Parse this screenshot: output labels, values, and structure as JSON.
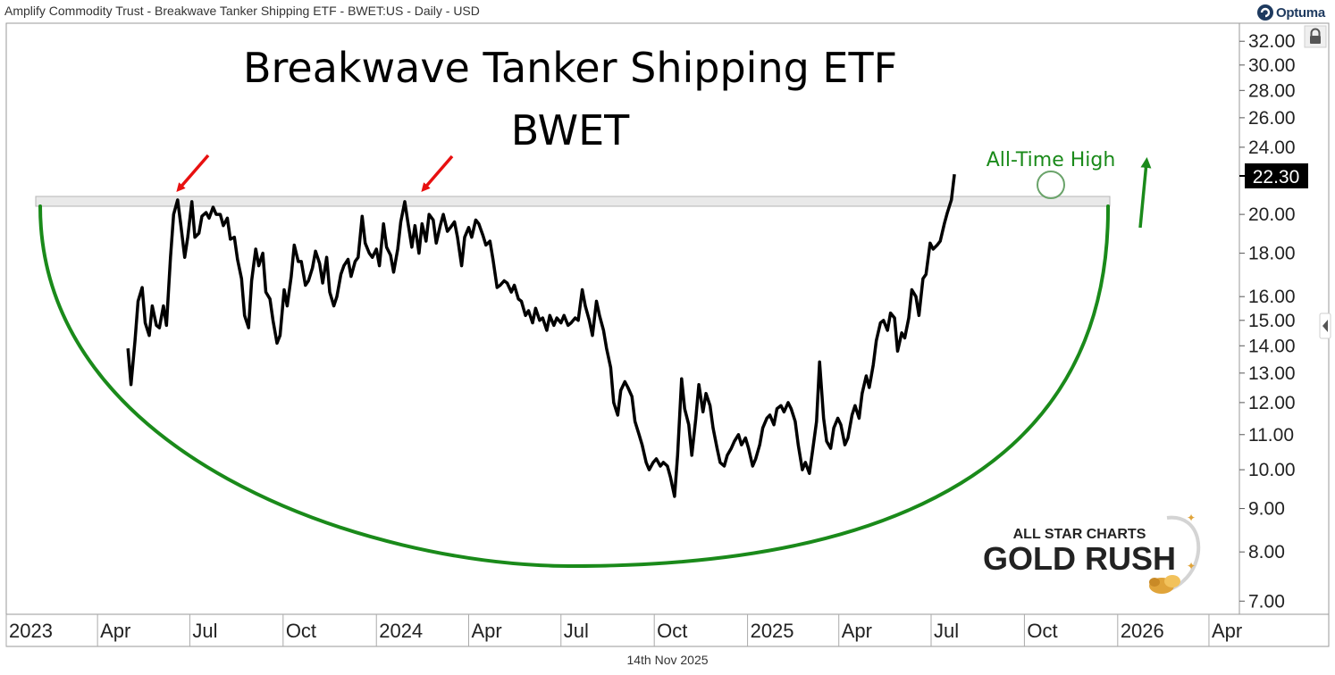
{
  "header": {
    "description": "Amplify Commodity Trust - Breakwave Tanker Shipping ETF - BWET:US - Daily - USD",
    "brand": "Optuma"
  },
  "footer": {
    "date": "14th Nov 2025"
  },
  "watermark": {
    "line1": "ALL STAR CHARTS",
    "line2": "GOLD RUSH"
  },
  "colors": {
    "price_line": "#000000",
    "arc": "#1a8a1a",
    "annotation": "#1a8a1a",
    "arrows": "#e81010",
    "band": "#e9e9e9"
  },
  "chart_data": {
    "type": "line",
    "title": "Breakwave Tanker Shipping ETF",
    "subtitle": "BWET",
    "x_tick_labels": [
      "2023",
      "Apr",
      "Jul",
      "Oct",
      "2024",
      "Apr",
      "Jul",
      "Oct",
      "2025",
      "Apr",
      "Jul",
      "Oct",
      "2026",
      "Apr"
    ],
    "x_ticks": [
      "2023-01-01",
      "2023-04-01",
      "2023-07-01",
      "2023-10-01",
      "2024-01-01",
      "2024-04-01",
      "2024-07-01",
      "2024-10-01",
      "2025-01-01",
      "2025-04-01",
      "2025-07-01",
      "2025-10-01",
      "2026-01-01",
      "2026-04-01"
    ],
    "xlim": [
      "2023-01-01",
      "2026-05-01"
    ],
    "y_scale": "log",
    "y_ticks": [
      7,
      8,
      9,
      10,
      11,
      12,
      13,
      14,
      15,
      16,
      18,
      20,
      24,
      26,
      28,
      30,
      32
    ],
    "y_tick_labels": [
      "7.00",
      "8.00",
      "9.00",
      "10.00",
      "11.00",
      "12.00",
      "13.00",
      "14.00",
      "15.00",
      "16.00",
      "18.00",
      "20.00",
      "24.00",
      "26.00",
      "28.00",
      "30.00",
      "32.00"
    ],
    "ylim": [
      6.6,
      35
    ],
    "last_value": 22.3,
    "last_value_label": "22.30",
    "resistance_band": [
      20.6,
      21.1
    ],
    "annotations": [
      {
        "text": "All-Time High",
        "date": "2025-11-12",
        "value": 22.3
      }
    ],
    "series": [
      {
        "points": [
          [
            "2023-05-01",
            13.9
          ],
          [
            "2023-05-04",
            12.6
          ],
          [
            "2023-05-08",
            14.2
          ],
          [
            "2023-05-11",
            15.8
          ],
          [
            "2023-05-15",
            16.4
          ],
          [
            "2023-05-18",
            14.9
          ],
          [
            "2023-05-22",
            14.4
          ],
          [
            "2023-05-25",
            15.6
          ],
          [
            "2023-05-29",
            14.8
          ],
          [
            "2023-06-01",
            14.7
          ],
          [
            "2023-06-05",
            15.6
          ],
          [
            "2023-06-08",
            14.8
          ],
          [
            "2023-06-12",
            17.8
          ],
          [
            "2023-06-15",
            20.0
          ],
          [
            "2023-06-19",
            20.8
          ],
          [
            "2023-06-22",
            19.5
          ],
          [
            "2023-06-26",
            17.8
          ],
          [
            "2023-06-29",
            18.8
          ],
          [
            "2023-07-03",
            20.7
          ],
          [
            "2023-07-06",
            18.8
          ],
          [
            "2023-07-10",
            19.0
          ],
          [
            "2023-07-13",
            19.9
          ],
          [
            "2023-07-17",
            20.1
          ],
          [
            "2023-07-20",
            19.8
          ],
          [
            "2023-07-24",
            20.4
          ],
          [
            "2023-07-27",
            20.0
          ],
          [
            "2023-07-31",
            20.0
          ],
          [
            "2023-08-03",
            19.4
          ],
          [
            "2023-08-07",
            19.8
          ],
          [
            "2023-08-10",
            18.7
          ],
          [
            "2023-08-14",
            18.8
          ],
          [
            "2023-08-17",
            17.7
          ],
          [
            "2023-08-21",
            16.8
          ],
          [
            "2023-08-24",
            15.2
          ],
          [
            "2023-08-28",
            14.7
          ],
          [
            "2023-08-31",
            16.7
          ],
          [
            "2023-09-04",
            18.2
          ],
          [
            "2023-09-07",
            17.4
          ],
          [
            "2023-09-11",
            18.0
          ],
          [
            "2023-09-14",
            16.2
          ],
          [
            "2023-09-18",
            15.9
          ],
          [
            "2023-09-21",
            15.0
          ],
          [
            "2023-09-25",
            14.1
          ],
          [
            "2023-09-28",
            14.4
          ],
          [
            "2023-10-02",
            16.3
          ],
          [
            "2023-10-05",
            15.6
          ],
          [
            "2023-10-09",
            16.9
          ],
          [
            "2023-10-12",
            18.4
          ],
          [
            "2023-10-16",
            17.6
          ],
          [
            "2023-10-19",
            17.6
          ],
          [
            "2023-10-23",
            16.5
          ],
          [
            "2023-10-26",
            16.7
          ],
          [
            "2023-10-30",
            17.3
          ],
          [
            "2023-11-02",
            18.1
          ],
          [
            "2023-11-06",
            17.5
          ],
          [
            "2023-11-09",
            16.6
          ],
          [
            "2023-11-13",
            17.8
          ],
          [
            "2023-11-16",
            16.2
          ],
          [
            "2023-11-20",
            15.6
          ],
          [
            "2023-11-23",
            16.0
          ],
          [
            "2023-11-27",
            17.0
          ],
          [
            "2023-11-30",
            17.4
          ],
          [
            "2023-12-04",
            17.7
          ],
          [
            "2023-12-07",
            16.9
          ],
          [
            "2023-12-11",
            17.6
          ],
          [
            "2023-12-14",
            17.8
          ],
          [
            "2023-12-18",
            19.9
          ],
          [
            "2023-12-21",
            18.5
          ],
          [
            "2023-12-25",
            18.0
          ],
          [
            "2023-12-28",
            17.8
          ],
          [
            "2024-01-01",
            18.2
          ],
          [
            "2024-01-04",
            17.4
          ],
          [
            "2024-01-08",
            19.5
          ],
          [
            "2024-01-11",
            18.3
          ],
          [
            "2024-01-15",
            17.9
          ],
          [
            "2024-01-18",
            17.1
          ],
          [
            "2024-01-22",
            18.2
          ],
          [
            "2024-01-25",
            19.6
          ],
          [
            "2024-01-29",
            20.7
          ],
          [
            "2024-02-01",
            19.6
          ],
          [
            "2024-02-05",
            18.3
          ],
          [
            "2024-02-08",
            19.4
          ],
          [
            "2024-02-12",
            18.0
          ],
          [
            "2024-02-15",
            19.5
          ],
          [
            "2024-02-19",
            18.6
          ],
          [
            "2024-02-22",
            20.0
          ],
          [
            "2024-02-26",
            19.7
          ],
          [
            "2024-02-29",
            18.5
          ],
          [
            "2024-03-04",
            19.4
          ],
          [
            "2024-03-07",
            20.0
          ],
          [
            "2024-03-11",
            19.1
          ],
          [
            "2024-03-14",
            19.3
          ],
          [
            "2024-03-18",
            19.6
          ],
          [
            "2024-03-21",
            18.8
          ],
          [
            "2024-03-25",
            17.4
          ],
          [
            "2024-03-28",
            18.8
          ],
          [
            "2024-04-01",
            19.3
          ],
          [
            "2024-04-04",
            18.8
          ],
          [
            "2024-04-08",
            19.7
          ],
          [
            "2024-04-11",
            19.5
          ],
          [
            "2024-04-15",
            18.9
          ],
          [
            "2024-04-18",
            18.4
          ],
          [
            "2024-04-22",
            18.6
          ],
          [
            "2024-04-25",
            17.7
          ],
          [
            "2024-04-29",
            16.4
          ],
          [
            "2024-05-02",
            16.5
          ],
          [
            "2024-05-06",
            16.7
          ],
          [
            "2024-05-09",
            16.6
          ],
          [
            "2024-05-13",
            16.2
          ],
          [
            "2024-05-16",
            16.5
          ],
          [
            "2024-05-20",
            15.9
          ],
          [
            "2024-05-23",
            15.8
          ],
          [
            "2024-05-27",
            15.2
          ],
          [
            "2024-05-30",
            15.4
          ],
          [
            "2024-06-03",
            14.9
          ],
          [
            "2024-06-06",
            15.5
          ],
          [
            "2024-06-10",
            15.0
          ],
          [
            "2024-06-13",
            15.1
          ],
          [
            "2024-06-17",
            14.6
          ],
          [
            "2024-06-20",
            15.2
          ],
          [
            "2024-06-24",
            14.8
          ],
          [
            "2024-06-27",
            15.1
          ],
          [
            "2024-07-01",
            14.9
          ],
          [
            "2024-07-04",
            15.2
          ],
          [
            "2024-07-08",
            14.8
          ],
          [
            "2024-07-11",
            14.9
          ],
          [
            "2024-07-15",
            15.1
          ],
          [
            "2024-07-18",
            15.0
          ],
          [
            "2024-07-22",
            16.3
          ],
          [
            "2024-07-25",
            15.6
          ],
          [
            "2024-07-29",
            15.0
          ],
          [
            "2024-08-01",
            14.4
          ],
          [
            "2024-08-05",
            15.8
          ],
          [
            "2024-08-08",
            15.2
          ],
          [
            "2024-08-12",
            14.6
          ],
          [
            "2024-08-15",
            13.9
          ],
          [
            "2024-08-19",
            13.2
          ],
          [
            "2024-08-22",
            12.0
          ],
          [
            "2024-08-26",
            11.6
          ],
          [
            "2024-08-29",
            12.4
          ],
          [
            "2024-09-02",
            12.7
          ],
          [
            "2024-09-05",
            12.5
          ],
          [
            "2024-09-09",
            12.2
          ],
          [
            "2024-09-12",
            11.4
          ],
          [
            "2024-09-16",
            11.0
          ],
          [
            "2024-09-19",
            10.7
          ],
          [
            "2024-09-23",
            10.2
          ],
          [
            "2024-09-26",
            10.0
          ],
          [
            "2024-09-30",
            10.2
          ],
          [
            "2024-10-03",
            10.3
          ],
          [
            "2024-10-07",
            10.1
          ],
          [
            "2024-10-10",
            10.2
          ],
          [
            "2024-10-14",
            10.1
          ],
          [
            "2024-10-17",
            9.8
          ],
          [
            "2024-10-21",
            9.3
          ],
          [
            "2024-10-24",
            10.4
          ],
          [
            "2024-10-28",
            12.8
          ],
          [
            "2024-10-31",
            11.8
          ],
          [
            "2024-11-04",
            11.3
          ],
          [
            "2024-11-07",
            10.4
          ],
          [
            "2024-11-11",
            11.5
          ],
          [
            "2024-11-14",
            12.6
          ],
          [
            "2024-11-18",
            11.7
          ],
          [
            "2024-11-21",
            12.3
          ],
          [
            "2024-11-25",
            11.9
          ],
          [
            "2024-11-28",
            11.2
          ],
          [
            "2024-12-02",
            10.6
          ],
          [
            "2024-12-05",
            10.2
          ],
          [
            "2024-12-09",
            10.1
          ],
          [
            "2024-12-12",
            10.4
          ],
          [
            "2024-12-16",
            10.6
          ],
          [
            "2024-12-19",
            10.8
          ],
          [
            "2024-12-23",
            11.0
          ],
          [
            "2024-12-26",
            10.7
          ],
          [
            "2024-12-30",
            10.9
          ],
          [
            "2025-01-02",
            10.6
          ],
          [
            "2025-01-06",
            10.1
          ],
          [
            "2025-01-09",
            10.3
          ],
          [
            "2025-01-13",
            10.7
          ],
          [
            "2025-01-16",
            11.2
          ],
          [
            "2025-01-20",
            11.5
          ],
          [
            "2025-01-23",
            11.6
          ],
          [
            "2025-01-27",
            11.3
          ],
          [
            "2025-01-30",
            11.8
          ],
          [
            "2025-02-03",
            11.9
          ],
          [
            "2025-02-06",
            11.7
          ],
          [
            "2025-02-10",
            12.0
          ],
          [
            "2025-02-13",
            11.8
          ],
          [
            "2025-02-17",
            11.4
          ],
          [
            "2025-02-20",
            10.7
          ],
          [
            "2025-02-24",
            10.0
          ],
          [
            "2025-02-27",
            10.2
          ],
          [
            "2025-03-03",
            9.9
          ],
          [
            "2025-03-06",
            10.5
          ],
          [
            "2025-03-10",
            11.4
          ],
          [
            "2025-03-13",
            13.4
          ],
          [
            "2025-03-17",
            11.5
          ],
          [
            "2025-03-20",
            10.8
          ],
          [
            "2025-03-24",
            10.6
          ],
          [
            "2025-03-27",
            11.2
          ],
          [
            "2025-03-31",
            11.5
          ],
          [
            "2025-04-03",
            11.3
          ],
          [
            "2025-04-07",
            10.7
          ],
          [
            "2025-04-10",
            10.9
          ],
          [
            "2025-04-14",
            11.6
          ],
          [
            "2025-04-17",
            11.9
          ],
          [
            "2025-04-21",
            11.5
          ],
          [
            "2025-04-24",
            12.3
          ],
          [
            "2025-04-28",
            12.9
          ],
          [
            "2025-05-01",
            12.5
          ],
          [
            "2025-05-05",
            13.3
          ],
          [
            "2025-05-08",
            14.2
          ],
          [
            "2025-05-12",
            14.9
          ],
          [
            "2025-05-15",
            15.0
          ],
          [
            "2025-05-19",
            14.6
          ],
          [
            "2025-05-22",
            15.3
          ],
          [
            "2025-05-26",
            15.1
          ],
          [
            "2025-05-29",
            13.8
          ],
          [
            "2025-06-02",
            14.5
          ],
          [
            "2025-06-05",
            14.3
          ],
          [
            "2025-06-09",
            15.1
          ],
          [
            "2025-06-12",
            16.3
          ],
          [
            "2025-06-16",
            16.0
          ],
          [
            "2025-06-19",
            15.2
          ],
          [
            "2025-06-23",
            16.8
          ],
          [
            "2025-06-26",
            17.0
          ],
          [
            "2025-06-30",
            18.5
          ],
          [
            "2025-07-03",
            18.2
          ],
          [
            "2025-07-07",
            18.4
          ],
          [
            "2025-07-10",
            18.6
          ],
          [
            "2025-07-14",
            19.5
          ],
          [
            "2025-07-17",
            20.1
          ],
          [
            "2025-07-21",
            20.8
          ],
          [
            "2025-07-24",
            22.3
          ]
        ]
      }
    ]
  }
}
